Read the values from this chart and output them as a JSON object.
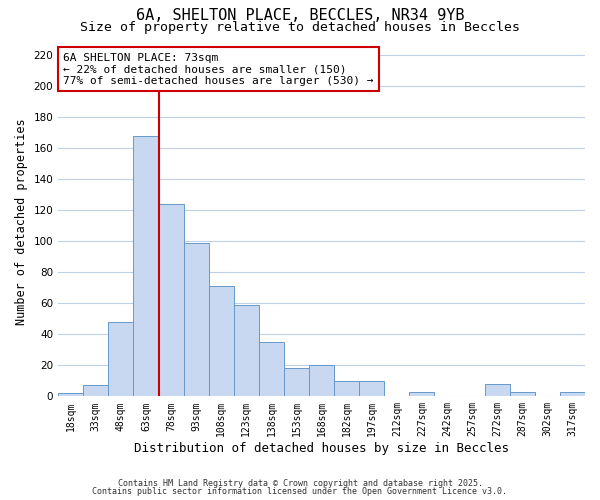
{
  "title": "6A, SHELTON PLACE, BECCLES, NR34 9YB",
  "subtitle": "Size of property relative to detached houses in Beccles",
  "xlabel": "Distribution of detached houses by size in Beccles",
  "ylabel": "Number of detached properties",
  "bar_color": "#c8d8f0",
  "bar_edge_color": "#6699cc",
  "categories": [
    "18sqm",
    "33sqm",
    "48sqm",
    "63sqm",
    "78sqm",
    "93sqm",
    "108sqm",
    "123sqm",
    "138sqm",
    "153sqm",
    "168sqm",
    "182sqm",
    "197sqm",
    "212sqm",
    "227sqm",
    "242sqm",
    "257sqm",
    "272sqm",
    "287sqm",
    "302sqm",
    "317sqm"
  ],
  "values": [
    2,
    7,
    48,
    168,
    124,
    99,
    71,
    59,
    35,
    18,
    20,
    10,
    10,
    0,
    3,
    0,
    0,
    8,
    3,
    0,
    3
  ],
  "vline_x_idx": 3,
  "vline_color": "#cc0000",
  "annotation_line1": "6A SHELTON PLACE: 73sqm",
  "annotation_line2": "← 22% of detached houses are smaller (150)",
  "annotation_line3": "77% of semi-detached houses are larger (530) →",
  "annotation_box_color": "#ffffff",
  "annotation_box_edge": "#cc0000",
  "annotation_fontsize": 8,
  "ylim": [
    0,
    225
  ],
  "yticks": [
    0,
    20,
    40,
    60,
    80,
    100,
    120,
    140,
    160,
    180,
    200,
    220
  ],
  "footer1": "Contains HM Land Registry data © Crown copyright and database right 2025.",
  "footer2": "Contains public sector information licensed under the Open Government Licence v3.0.",
  "bg_color": "#ffffff",
  "grid_color": "#c0d0e8",
  "title_fontsize": 11,
  "subtitle_fontsize": 9.5,
  "xlabel_fontsize": 9,
  "ylabel_fontsize": 8.5
}
